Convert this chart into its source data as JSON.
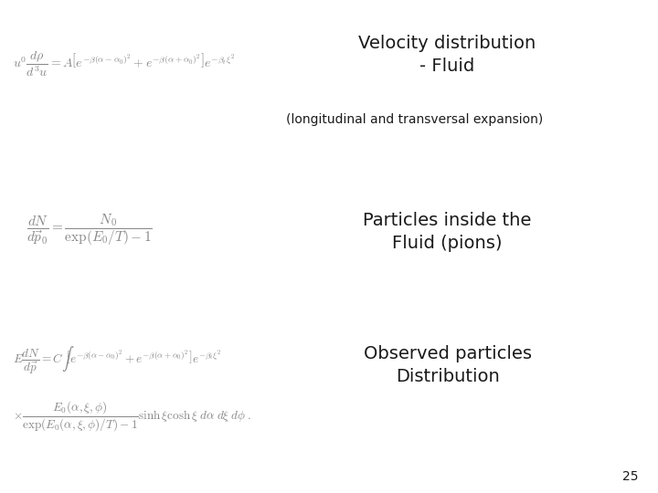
{
  "background_color": "#ffffff",
  "title1": "Velocity distribution\n- Fluid",
  "subtitle1": "(longitudinal and transversal expansion)",
  "title2": "Particles inside the\nFluid (pions)",
  "title3": "Observed particles\nDistribution",
  "page_number": "25",
  "eq1": "$u^0 \\dfrac{d\\rho}{d^3u} = A\\left[e^{-\\beta(\\alpha-\\alpha_0)^2} + e^{-\\beta(\\alpha+\\alpha_0)^2}\\right]e^{-\\beta_t \\xi^2}$",
  "eq2": "$\\dfrac{dN}{d\\vec{p}_0} = \\dfrac{N_0}{\\exp(E_0/T)-1}$",
  "eq3a": "$E\\dfrac{dN}{d\\vec{p}} = C\\int\\!\\left[e^{-\\beta(\\alpha-\\alpha_0)^2} + e^{-\\beta(\\alpha+\\alpha_0)^2}\\right]e^{-\\beta_t \\xi^2}$",
  "eq3b": "$\\times\\dfrac{E_0(\\alpha,\\xi,\\phi)}{\\exp(E_0(\\alpha,\\xi,\\phi)/T)-1}\\sinh\\xi\\cosh\\xi\\; d\\alpha\\; d\\xi\\; d\\phi\\;.$",
  "text_color": "#1a1a1a",
  "eq_color": "#888888",
  "title_fontsize": 14,
  "subtitle_fontsize": 10,
  "eq_fontsize": 10,
  "label_fontsize": 14
}
